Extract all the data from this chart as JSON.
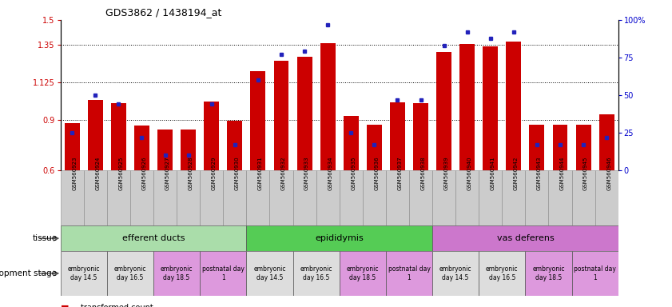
{
  "title": "GDS3862 / 1438194_at",
  "samples": [
    "GSM560923",
    "GSM560924",
    "GSM560925",
    "GSM560926",
    "GSM560927",
    "GSM560928",
    "GSM560929",
    "GSM560930",
    "GSM560931",
    "GSM560932",
    "GSM560933",
    "GSM560934",
    "GSM560935",
    "GSM560936",
    "GSM560937",
    "GSM560938",
    "GSM560939",
    "GSM560940",
    "GSM560941",
    "GSM560942",
    "GSM560943",
    "GSM560944",
    "GSM560945",
    "GSM560946"
  ],
  "red_values": [
    0.885,
    1.02,
    1.0,
    0.87,
    0.845,
    0.845,
    1.01,
    0.895,
    1.195,
    1.255,
    1.28,
    1.36,
    0.925,
    0.875,
    1.005,
    1.0,
    1.31,
    1.355,
    1.34,
    1.37,
    0.875,
    0.875,
    0.875,
    0.935
  ],
  "blue_percentile": [
    25,
    50,
    44,
    22,
    10,
    10,
    44,
    17,
    60,
    77,
    79,
    97,
    25,
    17,
    47,
    47,
    83,
    92,
    88,
    92,
    17,
    17,
    17,
    22
  ],
  "ylim_left": [
    0.6,
    1.5
  ],
  "ylim_right": [
    0,
    100
  ],
  "yticks_left": [
    0.6,
    0.9,
    1.125,
    1.35,
    1.5
  ],
  "ytick_labels_left": [
    "0.6",
    "0.9",
    "1.125",
    "1.35",
    "1.5"
  ],
  "yticks_right": [
    0,
    25,
    50,
    75,
    100
  ],
  "ytick_labels_right": [
    "0",
    "25",
    "50",
    "75",
    "100%"
  ],
  "bar_color": "#cc0000",
  "dot_color": "#2222bb",
  "hline_color": "black",
  "hline_vals": [
    0.9,
    1.125,
    1.35
  ],
  "tissue_groups": [
    {
      "label": "efferent ducts",
      "start": 0,
      "end": 8,
      "color": "#aaddaa"
    },
    {
      "label": "epididymis",
      "start": 8,
      "end": 16,
      "color": "#55cc55"
    },
    {
      "label": "vas deferens",
      "start": 16,
      "end": 24,
      "color": "#cc77cc"
    }
  ],
  "dev_stage_groups": [
    {
      "label": "embryonic\nday 14.5",
      "start": 0,
      "end": 2,
      "color": "#dddddd"
    },
    {
      "label": "embryonic\nday 16.5",
      "start": 2,
      "end": 4,
      "color": "#dddddd"
    },
    {
      "label": "embryonic\nday 18.5",
      "start": 4,
      "end": 6,
      "color": "#dd99dd"
    },
    {
      "label": "postnatal day\n1",
      "start": 6,
      "end": 8,
      "color": "#dd99dd"
    },
    {
      "label": "embryonic\nday 14.5",
      "start": 8,
      "end": 10,
      "color": "#dddddd"
    },
    {
      "label": "embryonic\nday 16.5",
      "start": 10,
      "end": 12,
      "color": "#dddddd"
    },
    {
      "label": "embryonic\nday 18.5",
      "start": 12,
      "end": 14,
      "color": "#dd99dd"
    },
    {
      "label": "postnatal day\n1",
      "start": 14,
      "end": 16,
      "color": "#dd99dd"
    },
    {
      "label": "embryonic\nday 14.5",
      "start": 16,
      "end": 18,
      "color": "#dddddd"
    },
    {
      "label": "embryonic\nday 16.5",
      "start": 18,
      "end": 20,
      "color": "#dddddd"
    },
    {
      "label": "embryonic\nday 18.5",
      "start": 20,
      "end": 22,
      "color": "#dd99dd"
    },
    {
      "label": "postnatal day\n1",
      "start": 22,
      "end": 24,
      "color": "#dd99dd"
    }
  ],
  "sample_box_color": "#cccccc",
  "fig_width": 8.41,
  "fig_height": 3.84,
  "dpi": 100
}
